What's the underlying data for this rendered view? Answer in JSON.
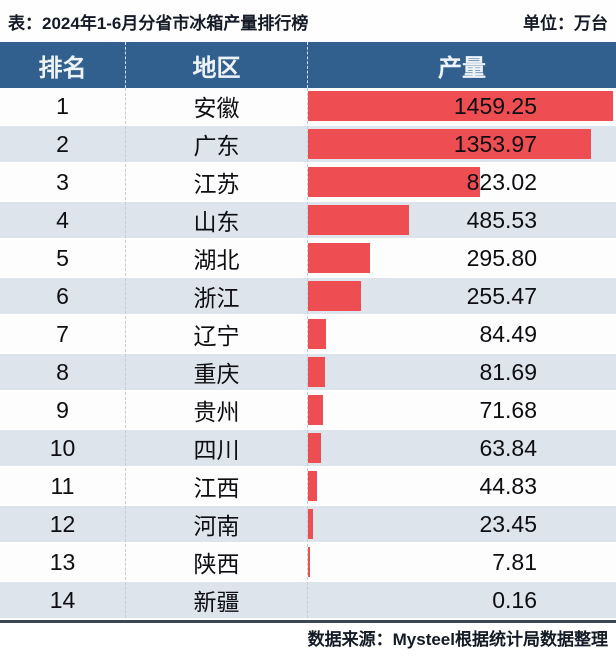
{
  "title": "表：2024年1-6月分省市冰箱产量排行榜",
  "unit_label": "单位：万台",
  "columns": {
    "rank": "排名",
    "region": "地区",
    "value": "产量"
  },
  "footer": {
    "source": "数据来源：Mysteel根据统计局数据整理"
  },
  "colors": {
    "header_bg": "#31608e",
    "bar": "#ee4e52",
    "row_alt_bg": "#dde4ec",
    "bottom_border": "#3d4753"
  },
  "chart_data": {
    "type": "bar",
    "orientation": "horizontal",
    "title": "2024年1-6月分省市冰箱产量排行榜",
    "unit": "万台",
    "xlabel": "产量",
    "ylabel": "地区",
    "xlim": [
      0,
      1459.25
    ],
    "legend": false,
    "grid": false,
    "ranks": [
      1,
      2,
      3,
      4,
      5,
      6,
      7,
      8,
      9,
      10,
      11,
      12,
      13,
      14
    ],
    "categories": [
      "安徽",
      "广东",
      "江苏",
      "山东",
      "湖北",
      "浙江",
      "辽宁",
      "重庆",
      "贵州",
      "四川",
      "江西",
      "河南",
      "陕西",
      "新疆"
    ],
    "values": [
      1459.25,
      1353.97,
      823.02,
      485.53,
      295.8,
      255.47,
      84.49,
      81.69,
      71.68,
      63.84,
      44.83,
      23.45,
      7.81,
      0.16
    ]
  }
}
